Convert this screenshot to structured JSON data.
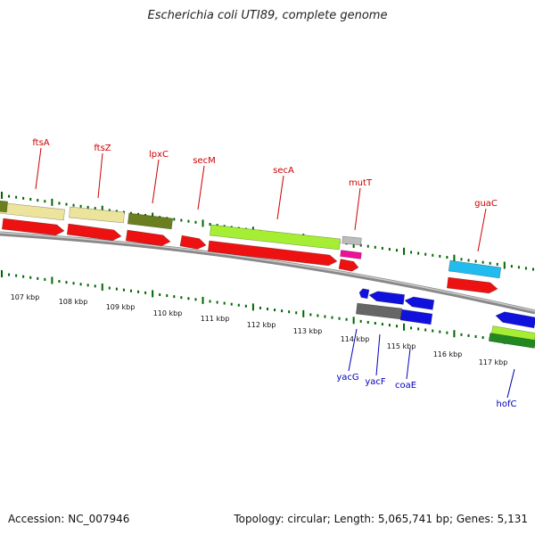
{
  "title": "Escherichia coli UTI89, complete genome",
  "footer": {
    "accession": "Accession: NC_007946",
    "stats": "Topology: circular; Length: 5,065,741 bp; Genes: 5,131"
  },
  "colors": {
    "forward_label": "#cc0000",
    "reverse_label": "#0000bb",
    "ticks": "#006600",
    "backbone": "#888888",
    "cds": "#ee1111",
    "khaki": "#ece49c",
    "olive": "#6b7f20",
    "lime": "#a6ee33",
    "grey_feature": "#bbbbbb",
    "magenta": "#ee1199",
    "sky": "#22bbee",
    "blue": "#1111dd",
    "dark_grey": "#666666",
    "dark_green": "#228822"
  },
  "axis": {
    "unit": "kbp",
    "labels": [
      "107 kbp",
      "108 kbp",
      "109 kbp",
      "110 kbp",
      "111 kbp",
      "112 kbp",
      "113 kbp",
      "114 kbp",
      "115 kbp",
      "116 kbp",
      "117 kbp"
    ]
  },
  "genes": {
    "forward": [
      "ftsA",
      "ftsZ",
      "lpxC",
      "secM",
      "secA",
      "mutT",
      "guaC"
    ],
    "reverse": [
      "yacG",
      "yacF",
      "coaE",
      "hofC"
    ]
  }
}
